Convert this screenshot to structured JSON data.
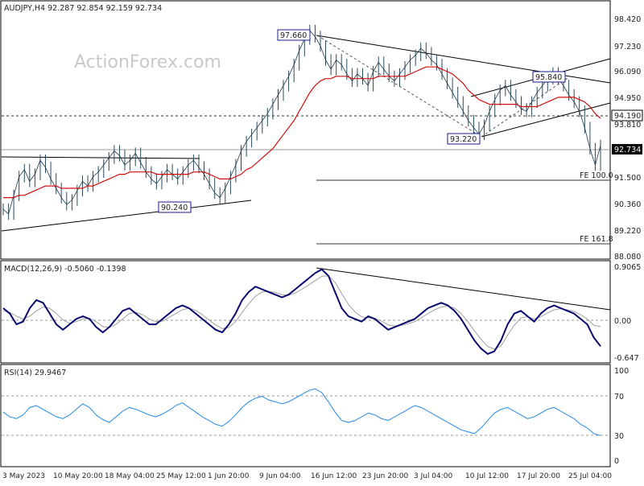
{
  "chart_data": {
    "type": "line",
    "symbol": "AUDJPY",
    "timeframe": "H4",
    "title": "AUDJPY,H4  92.287 92.854 92.159 92.734",
    "watermark": "ActionForex.com",
    "x_labels": [
      "3 May 2023",
      "10 May 20:00",
      "18 May 04:00",
      "25 May 12:00",
      "1 Jun 20:00",
      "9 Jun 04:00",
      "16 Jun 12:00",
      "23 Jun 20:00",
      "3 Jul 04:00",
      "10 Jul 12:00",
      "17 Jul 20:00",
      "25 Jul 04:00"
    ],
    "price_panel": {
      "y_ticks": [
        "98.420",
        "97.230",
        "96.090",
        "94.950",
        "93.810",
        "91.500",
        "90.360",
        "89.220",
        "88.080"
      ],
      "ylim": [
        87.9,
        98.9
      ],
      "current_price": "92.734",
      "resistance_level": "94.190",
      "annotations": [
        "97.660",
        "93.220",
        "95.840",
        "90.240"
      ],
      "fibonacci": [
        "FE 100.0",
        "FE 161.8"
      ],
      "close_series": [
        90.0,
        89.8,
        90.6,
        91.4,
        91.7,
        91.2,
        91.5,
        92.1,
        91.8,
        91.3,
        90.9,
        90.5,
        90.2,
        90.4,
        90.8,
        91.2,
        91.0,
        91.4,
        91.6,
        91.9,
        92.2,
        92.5,
        92.3,
        91.9,
        92.1,
        92.4,
        92.0,
        91.6,
        91.3,
        91.1,
        91.4,
        91.7,
        91.5,
        91.3,
        91.6,
        91.9,
        92.1,
        91.8,
        91.5,
        91.1,
        90.7,
        90.5,
        90.9,
        91.4,
        91.9,
        92.5,
        92.9,
        93.2,
        93.5,
        93.8,
        94.1,
        94.5,
        94.9,
        95.3,
        95.7,
        96.2,
        96.8,
        97.3,
        97.66,
        97.4,
        97.0,
        96.4,
        96.0,
        96.4,
        96.2,
        95.8,
        95.5,
        95.8,
        95.6,
        95.3,
        95.9,
        96.3,
        96.0,
        95.7,
        95.5,
        95.8,
        96.1,
        96.4,
        96.6,
        96.9,
        96.7,
        96.4,
        96.2,
        95.8,
        95.4,
        95.0,
        94.6,
        94.2,
        93.8,
        93.5,
        93.22,
        93.6,
        94.2,
        94.7,
        95.1,
        95.3,
        94.9,
        94.6,
        94.3,
        94.2,
        94.6,
        95.0,
        95.3,
        95.6,
        95.84,
        95.6,
        95.3,
        94.9,
        94.6,
        94.2,
        93.5,
        92.6,
        91.9,
        92.734
      ],
      "ema_series": [
        90.5,
        90.5,
        90.5,
        90.6,
        90.6,
        90.7,
        90.8,
        90.9,
        91.0,
        91.0,
        91.0,
        90.9,
        90.9,
        90.9,
        90.9,
        90.9,
        91.0,
        91.0,
        91.1,
        91.2,
        91.3,
        91.4,
        91.5,
        91.5,
        91.6,
        91.6,
        91.6,
        91.6,
        91.6,
        91.5,
        91.5,
        91.5,
        91.5,
        91.5,
        91.5,
        91.5,
        91.6,
        91.6,
        91.6,
        91.5,
        91.4,
        91.3,
        91.3,
        91.3,
        91.4,
        91.5,
        91.7,
        91.8,
        92.0,
        92.2,
        92.4,
        92.6,
        92.9,
        93.2,
        93.5,
        93.8,
        94.2,
        94.6,
        95.0,
        95.3,
        95.5,
        95.6,
        95.6,
        95.7,
        95.7,
        95.7,
        95.6,
        95.6,
        95.6,
        95.6,
        95.6,
        95.7,
        95.7,
        95.7,
        95.7,
        95.7,
        95.7,
        95.8,
        95.9,
        96.0,
        96.1,
        96.1,
        96.1,
        96.0,
        95.9,
        95.8,
        95.6,
        95.4,
        95.1,
        94.9,
        94.7,
        94.6,
        94.5,
        94.5,
        94.5,
        94.5,
        94.5,
        94.5,
        94.4,
        94.4,
        94.4,
        94.4,
        94.5,
        94.6,
        94.7,
        94.8,
        94.8,
        94.8,
        94.8,
        94.7,
        94.6,
        94.4,
        94.1,
        93.9
      ]
    },
    "macd_panel": {
      "label": "MACD(12,26,9) -0.5060 -0.1398",
      "y_ticks": [
        "0.9065",
        "0.00",
        "-0.647"
      ],
      "ylim": [
        -0.8,
        1.05
      ],
      "macd_series": [
        0.2,
        0.1,
        -0.1,
        -0.05,
        0.2,
        0.35,
        0.3,
        0.1,
        -0.1,
        -0.2,
        -0.1,
        0.0,
        0.05,
        0.0,
        -0.15,
        -0.25,
        -0.15,
        0.0,
        0.15,
        0.2,
        0.1,
        0.0,
        -0.1,
        -0.1,
        0.0,
        0.1,
        0.2,
        0.25,
        0.2,
        0.1,
        0.0,
        -0.1,
        -0.2,
        -0.25,
        -0.1,
        0.1,
        0.35,
        0.5,
        0.6,
        0.55,
        0.5,
        0.45,
        0.4,
        0.45,
        0.55,
        0.65,
        0.75,
        0.85,
        0.92,
        0.8,
        0.5,
        0.2,
        0.05,
        0.0,
        -0.05,
        0.05,
        0.0,
        -0.1,
        -0.2,
        -0.15,
        -0.1,
        -0.05,
        0.0,
        0.1,
        0.2,
        0.25,
        0.3,
        0.25,
        0.15,
        0.0,
        -0.2,
        -0.4,
        -0.55,
        -0.65,
        -0.6,
        -0.4,
        -0.1,
        0.1,
        0.15,
        0.05,
        -0.05,
        0.1,
        0.2,
        0.25,
        0.2,
        0.15,
        0.1,
        0.0,
        -0.1,
        -0.35,
        -0.506
      ],
      "signal_series": [
        0.15,
        0.12,
        0.05,
        0.0,
        0.05,
        0.15,
        0.22,
        0.2,
        0.1,
        -0.02,
        -0.08,
        -0.05,
        0.0,
        0.01,
        -0.05,
        -0.14,
        -0.16,
        -0.1,
        0.0,
        0.1,
        0.12,
        0.08,
        0.0,
        -0.05,
        -0.04,
        0.03,
        0.1,
        0.17,
        0.2,
        0.16,
        0.08,
        -0.02,
        -0.11,
        -0.18,
        -0.16,
        -0.05,
        0.12,
        0.28,
        0.42,
        0.5,
        0.51,
        0.49,
        0.45,
        0.44,
        0.48,
        0.55,
        0.63,
        0.71,
        0.79,
        0.8,
        0.68,
        0.47,
        0.27,
        0.13,
        0.04,
        0.02,
        0.01,
        -0.04,
        -0.11,
        -0.13,
        -0.12,
        -0.09,
        -0.05,
        0.02,
        0.1,
        0.17,
        0.22,
        0.24,
        0.2,
        0.1,
        -0.05,
        -0.22,
        -0.38,
        -0.51,
        -0.56,
        -0.5,
        -0.3,
        -0.12,
        0.02,
        0.04,
        0.0,
        0.04,
        0.11,
        0.17,
        0.19,
        0.17,
        0.14,
        0.08,
        0.0,
        -0.12,
        -0.1398
      ]
    },
    "rsi_panel": {
      "label": "RSI(14) 29.9467",
      "y_ticks": [
        "100",
        "70",
        "30",
        "0"
      ],
      "ylim": [
        0,
        100
      ],
      "rsi_series": [
        55,
        50,
        48,
        52,
        60,
        62,
        58,
        54,
        50,
        48,
        52,
        58,
        64,
        60,
        52,
        47,
        44,
        50,
        56,
        60,
        58,
        55,
        52,
        50,
        53,
        57,
        62,
        65,
        60,
        55,
        50,
        46,
        42,
        40,
        45,
        52,
        60,
        66,
        70,
        72,
        68,
        66,
        64,
        66,
        70,
        74,
        78,
        80,
        76,
        66,
        55,
        46,
        44,
        46,
        50,
        54,
        52,
        48,
        46,
        50,
        54,
        58,
        62,
        60,
        56,
        52,
        48,
        44,
        40,
        36,
        34,
        32,
        38,
        46,
        54,
        58,
        60,
        56,
        52,
        48,
        50,
        54,
        58,
        60,
        56,
        52,
        48,
        42,
        38,
        32,
        29.9467
      ]
    }
  }
}
